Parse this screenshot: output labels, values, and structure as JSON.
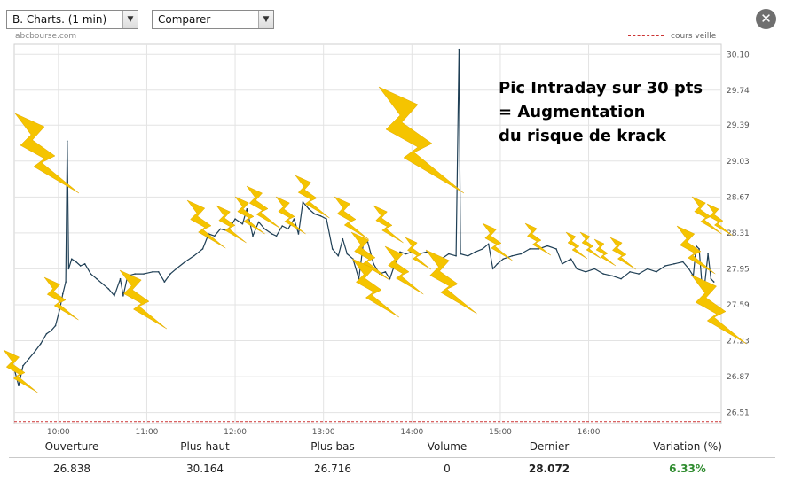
{
  "toolbar": {
    "chart_select": "B. Charts. (1 min)",
    "compare_select": "Comparer"
  },
  "source_label": "abcbourse.com",
  "legend": {
    "label": "cours veille",
    "color": "#cc3333"
  },
  "annotation": {
    "lines": [
      "Pic Intraday sur 30 pts",
      "= Augmentation",
      "du risque de krack"
    ]
  },
  "stats": {
    "labels": [
      "Ouverture",
      "Plus haut",
      "Plus bas",
      "Volume",
      "Dernier",
      "Variation (%)"
    ],
    "values": [
      "26.838",
      "30.164",
      "26.716",
      "0",
      "28.072",
      "6.33%"
    ]
  },
  "colors": {
    "line": "#1f3f55",
    "lightning": "#f5c400",
    "variation_positive": "#2e8b2e"
  },
  "chart_data": {
    "type": "line",
    "x_ticks": [
      "10:00",
      "11:00",
      "12:00",
      "13:00",
      "14:00",
      "15:00",
      "16:00"
    ],
    "y_ticks": [
      26.51,
      26.87,
      27.23,
      27.59,
      27.95,
      28.31,
      28.67,
      29.03,
      29.39,
      29.74,
      30.1
    ],
    "ylim": [
      26.4,
      30.2
    ],
    "xlim": [
      "09:30",
      "17:30"
    ],
    "prev_close_line": 26.42,
    "series": [
      {
        "points": [
          [
            "09:30",
            26.95
          ],
          [
            "09:33",
            26.78
          ],
          [
            "09:36",
            26.98
          ],
          [
            "09:40",
            27.05
          ],
          [
            "09:44",
            27.12
          ],
          [
            "09:48",
            27.2
          ],
          [
            "09:52",
            27.3
          ],
          [
            "09:55",
            27.33
          ],
          [
            "09:58",
            27.38
          ],
          [
            "10:01",
            27.55
          ],
          [
            "10:03",
            27.7
          ],
          [
            "10:05",
            27.82
          ],
          [
            "10:06",
            29.23
          ],
          [
            "10:07",
            27.95
          ],
          [
            "10:09",
            28.05
          ],
          [
            "10:12",
            28.02
          ],
          [
            "10:15",
            27.98
          ],
          [
            "10:18",
            28.0
          ],
          [
            "10:22",
            27.9
          ],
          [
            "10:26",
            27.85
          ],
          [
            "10:30",
            27.8
          ],
          [
            "10:34",
            27.75
          ],
          [
            "10:38",
            27.68
          ],
          [
            "10:42",
            27.85
          ],
          [
            "10:44",
            27.68
          ],
          [
            "10:47",
            27.88
          ],
          [
            "10:52",
            27.9
          ],
          [
            "10:58",
            27.9
          ],
          [
            "11:04",
            27.92
          ],
          [
            "11:08",
            27.92
          ],
          [
            "11:12",
            27.82
          ],
          [
            "11:16",
            27.9
          ],
          [
            "11:20",
            27.95
          ],
          [
            "11:26",
            28.02
          ],
          [
            "11:32",
            28.08
          ],
          [
            "11:38",
            28.15
          ],
          [
            "11:42",
            28.3
          ],
          [
            "11:46",
            28.28
          ],
          [
            "11:50",
            28.35
          ],
          [
            "11:55",
            28.33
          ],
          [
            "12:00",
            28.45
          ],
          [
            "12:05",
            28.4
          ],
          [
            "12:08",
            28.55
          ],
          [
            "12:12",
            28.28
          ],
          [
            "12:16",
            28.42
          ],
          [
            "12:20",
            28.35
          ],
          [
            "12:25",
            28.3
          ],
          [
            "12:28",
            28.28
          ],
          [
            "12:32",
            28.38
          ],
          [
            "12:36",
            28.35
          ],
          [
            "12:40",
            28.45
          ],
          [
            "12:43",
            28.3
          ],
          [
            "12:46",
            28.62
          ],
          [
            "12:50",
            28.55
          ],
          [
            "12:54",
            28.5
          ],
          [
            "12:58",
            28.48
          ],
          [
            "13:02",
            28.45
          ],
          [
            "13:06",
            28.15
          ],
          [
            "13:10",
            28.08
          ],
          [
            "13:13",
            28.25
          ],
          [
            "13:16",
            28.1
          ],
          [
            "13:20",
            28.05
          ],
          [
            "13:24",
            27.85
          ],
          [
            "13:27",
            28.2
          ],
          [
            "13:30",
            28.22
          ],
          [
            "13:34",
            28.0
          ],
          [
            "13:38",
            27.9
          ],
          [
            "13:42",
            27.92
          ],
          [
            "13:45",
            27.85
          ],
          [
            "13:48",
            27.98
          ],
          [
            "13:52",
            28.12
          ],
          [
            "13:56",
            28.1
          ],
          [
            "14:00",
            28.12
          ],
          [
            "14:05",
            28.1
          ],
          [
            "14:10",
            28.12
          ],
          [
            "14:15",
            28.08
          ],
          [
            "14:20",
            28.05
          ],
          [
            "14:25",
            28.1
          ],
          [
            "14:30",
            28.08
          ],
          [
            "14:32",
            30.15
          ],
          [
            "14:33",
            28.1
          ],
          [
            "14:38",
            28.08
          ],
          [
            "14:43",
            28.12
          ],
          [
            "14:48",
            28.15
          ],
          [
            "14:52",
            28.2
          ],
          [
            "14:55",
            27.95
          ],
          [
            "14:58",
            28.0
          ],
          [
            "15:02",
            28.05
          ],
          [
            "15:08",
            28.08
          ],
          [
            "15:14",
            28.1
          ],
          [
            "15:20",
            28.15
          ],
          [
            "15:26",
            28.15
          ],
          [
            "15:32",
            28.18
          ],
          [
            "15:38",
            28.15
          ],
          [
            "15:42",
            28.0
          ],
          [
            "15:48",
            28.05
          ],
          [
            "15:52",
            27.95
          ],
          [
            "15:58",
            27.92
          ],
          [
            "16:04",
            27.95
          ],
          [
            "16:10",
            27.9
          ],
          [
            "16:16",
            27.88
          ],
          [
            "16:22",
            27.85
          ],
          [
            "16:28",
            27.92
          ],
          [
            "16:34",
            27.9
          ],
          [
            "16:40",
            27.95
          ],
          [
            "16:46",
            27.92
          ],
          [
            "16:52",
            27.98
          ],
          [
            "16:58",
            28.0
          ],
          [
            "17:04",
            28.02
          ],
          [
            "17:08",
            27.95
          ],
          [
            "17:11",
            27.88
          ],
          [
            "17:13",
            28.18
          ],
          [
            "17:15",
            28.15
          ],
          [
            "17:17",
            27.78
          ],
          [
            "17:19",
            27.82
          ],
          [
            "17:21",
            28.1
          ],
          [
            "17:23",
            27.85
          ],
          [
            "17:25",
            27.82
          ]
        ]
      }
    ],
    "grid": true
  }
}
